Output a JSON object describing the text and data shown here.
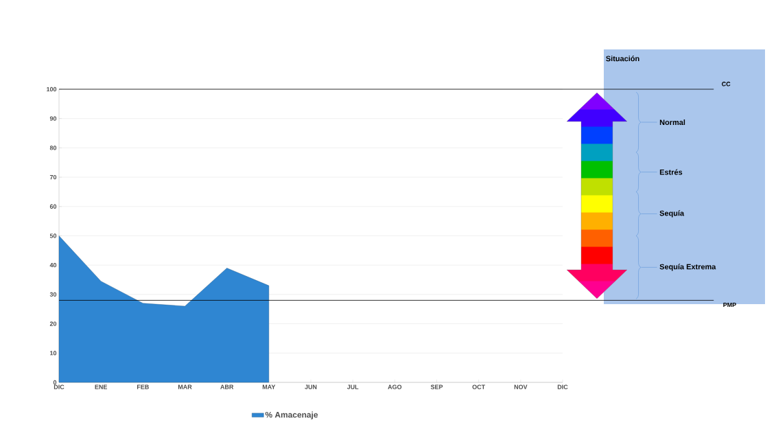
{
  "chart_data": {
    "type": "area",
    "categories": [
      "DIC",
      "ENE",
      "FEB",
      "MAR",
      "ABR",
      "MAY",
      "JUN",
      "JUL",
      "AGO",
      "SEP",
      "OCT",
      "NOV",
      "DIC"
    ],
    "series": [
      {
        "name": "% Amacenaje",
        "color": "#2f86d2",
        "values": [
          50,
          34.5,
          27,
          26,
          39,
          33,
          null,
          null,
          null,
          null,
          null,
          null,
          null
        ]
      }
    ],
    "ylim": [
      0,
      100
    ],
    "yticks": [
      0,
      10,
      20,
      30,
      40,
      50,
      60,
      70,
      80,
      90,
      100
    ],
    "grid": "y",
    "legend": "bottom",
    "marker": "none",
    "ref_lines": [
      {
        "axis": "y",
        "value": 100,
        "label": "CC"
      },
      {
        "axis": "y",
        "value": 28,
        "label": "PMP"
      }
    ],
    "annotations": [
      "Situación",
      "Normal",
      "Estrés",
      "Sequía",
      "Sequía Extrema"
    ]
  }
}
